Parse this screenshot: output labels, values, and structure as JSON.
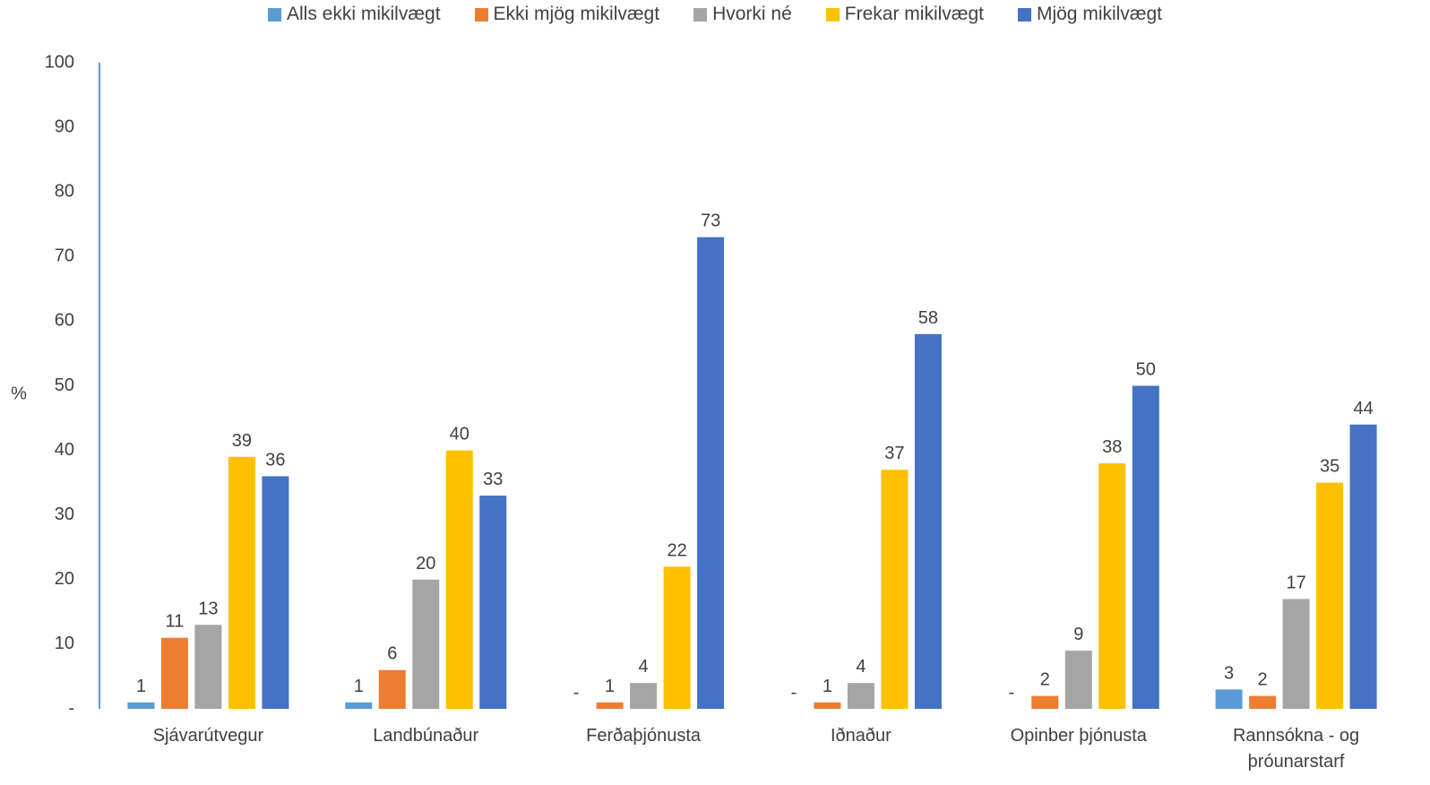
{
  "chart_data": {
    "type": "bar",
    "ylabel": "%",
    "ylim": [
      0,
      100
    ],
    "yticks": [
      "-",
      "10",
      "20",
      "30",
      "40",
      "50",
      "60",
      "70",
      "80",
      "90",
      "100"
    ],
    "categories": [
      "Sjávarútvegur",
      "Landbúnaður",
      "Ferðaþjónusta",
      "Iðnaður",
      "Opinber þjónusta",
      "Rannsókna - og þróunarstarf"
    ],
    "legend_position": "top",
    "grid": false,
    "series": [
      {
        "name": "Alls ekki mikilvægt",
        "color": "#5B9BD5",
        "values": [
          1,
          1,
          0,
          0,
          0,
          3
        ],
        "labels": [
          "1",
          "1",
          "-",
          "-",
          "-",
          "3"
        ]
      },
      {
        "name": "Ekki mjög mikilvægt",
        "color": "#ED7D31",
        "values": [
          11,
          6,
          1,
          1,
          2,
          2
        ],
        "labels": [
          "11",
          "6",
          "1",
          "1",
          "2",
          "2"
        ]
      },
      {
        "name": "Hvorki né",
        "color": "#A5A5A5",
        "values": [
          13,
          20,
          4,
          4,
          9,
          17
        ],
        "labels": [
          "13",
          "20",
          "4",
          "4",
          "9",
          "17"
        ]
      },
      {
        "name": "Frekar mikilvægt",
        "color": "#FFC000",
        "values": [
          39,
          40,
          22,
          37,
          38,
          35
        ],
        "labels": [
          "39",
          "40",
          "22",
          "37",
          "38",
          "35"
        ]
      },
      {
        "name": "Mjög mikilvægt",
        "color": "#4472C4",
        "values": [
          36,
          33,
          73,
          58,
          50,
          44
        ],
        "labels": [
          "36",
          "33",
          "73",
          "58",
          "50",
          "44"
        ]
      }
    ]
  }
}
